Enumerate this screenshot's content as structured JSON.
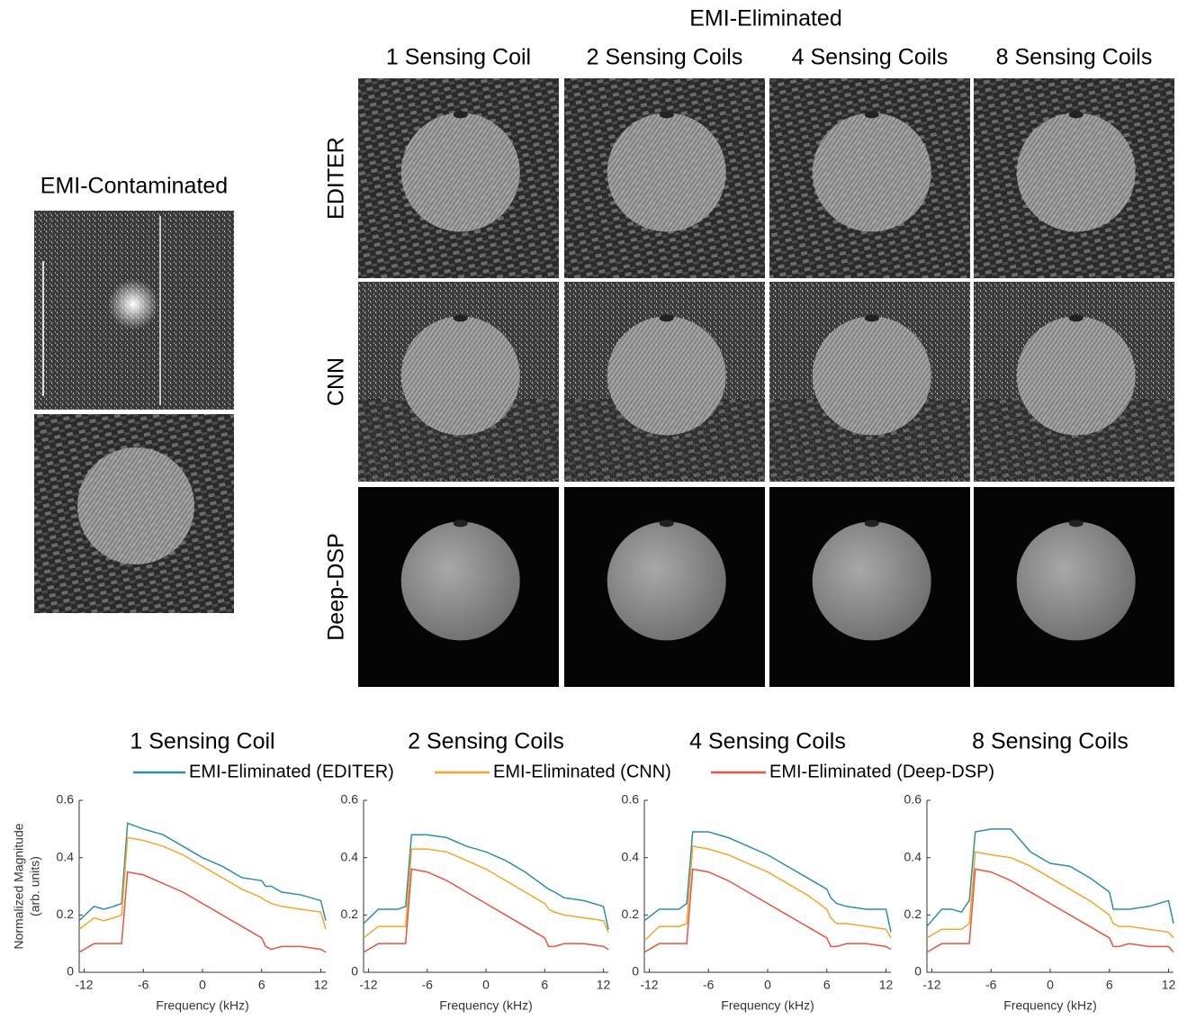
{
  "figure": {
    "contaminated_title": "EMI-Contaminated",
    "eliminated_title": "EMI-Eliminated",
    "columns": [
      "1 Sensing Coil",
      "2 Sensing Coils",
      "4 Sensing Coils",
      "8 Sensing Coils"
    ],
    "rows": [
      "EDITER",
      "CNN",
      "Deep-DSP"
    ]
  },
  "chart_data": [
    {
      "type": "line",
      "title": "1 Sensing Coil",
      "xlabel": "Frequency (kHz)",
      "ylabel": [
        "Normalized Magnitude",
        "(arb. units)"
      ],
      "xlim": [
        -12.5,
        12.5
      ],
      "xticks": [
        -12,
        -6,
        0,
        6,
        12
      ],
      "ylim": [
        0,
        0.6
      ],
      "yticks": [
        0,
        0.2,
        0.4,
        0.6
      ],
      "x": [
        -12.5,
        -11,
        -10,
        -9,
        -8.2,
        -7.6,
        -6,
        -4,
        -2,
        0,
        2,
        4,
        6,
        6.4,
        7,
        8,
        10,
        12,
        12.5
      ],
      "series": [
        {
          "name": "EMI-Eliminated (EDITER)",
          "color": "#2b8fa6",
          "values": [
            0.18,
            0.23,
            0.22,
            0.23,
            0.24,
            0.52,
            0.5,
            0.48,
            0.44,
            0.4,
            0.37,
            0.33,
            0.32,
            0.3,
            0.3,
            0.28,
            0.27,
            0.25,
            0.18
          ]
        },
        {
          "name": "EMI-Eliminated (CNN)",
          "color": "#f4a62a",
          "values": [
            0.15,
            0.19,
            0.18,
            0.19,
            0.2,
            0.47,
            0.46,
            0.44,
            0.41,
            0.37,
            0.33,
            0.29,
            0.26,
            0.25,
            0.24,
            0.23,
            0.22,
            0.21,
            0.15
          ]
        },
        {
          "name": "EMI-Eliminated (Deep-DSP)",
          "color": "#e8553f",
          "values": [
            0.07,
            0.1,
            0.1,
            0.1,
            0.1,
            0.35,
            0.34,
            0.31,
            0.28,
            0.24,
            0.2,
            0.16,
            0.12,
            0.09,
            0.08,
            0.09,
            0.09,
            0.08,
            0.07
          ]
        }
      ]
    },
    {
      "type": "line",
      "title": "2 Sensing Coils",
      "xlabel": "Frequency (kHz)",
      "xlim": [
        -12.5,
        12.5
      ],
      "xticks": [
        -12,
        -6,
        0,
        6,
        12
      ],
      "ylim": [
        0,
        0.6
      ],
      "yticks": [
        0,
        0.2,
        0.4,
        0.6
      ],
      "x": [
        -12.5,
        -11,
        -10,
        -9,
        -8.2,
        -7.6,
        -6,
        -4,
        -2,
        0,
        2,
        4,
        6,
        6.4,
        7,
        8,
        10,
        12,
        12.5
      ],
      "series": [
        {
          "color": "#2b8fa6",
          "values": [
            0.17,
            0.22,
            0.22,
            0.22,
            0.23,
            0.48,
            0.48,
            0.47,
            0.44,
            0.42,
            0.39,
            0.35,
            0.3,
            0.29,
            0.28,
            0.26,
            0.25,
            0.23,
            0.15
          ]
        },
        {
          "color": "#f4a62a",
          "values": [
            0.12,
            0.16,
            0.16,
            0.16,
            0.16,
            0.43,
            0.43,
            0.42,
            0.39,
            0.36,
            0.32,
            0.28,
            0.24,
            0.22,
            0.21,
            0.2,
            0.19,
            0.18,
            0.14
          ]
        },
        {
          "color": "#e8553f",
          "values": [
            0.07,
            0.1,
            0.1,
            0.1,
            0.1,
            0.36,
            0.35,
            0.32,
            0.28,
            0.24,
            0.2,
            0.16,
            0.12,
            0.09,
            0.09,
            0.1,
            0.1,
            0.09,
            0.08
          ]
        }
      ]
    },
    {
      "type": "line",
      "title": "4 Sensing Coils",
      "xlabel": "Frequency (kHz)",
      "xlim": [
        -12.5,
        12.5
      ],
      "xticks": [
        -12,
        -6,
        0,
        6,
        12
      ],
      "ylim": [
        0,
        0.6
      ],
      "yticks": [
        0,
        0.2,
        0.4,
        0.6
      ],
      "x": [
        -12.5,
        -11,
        -10,
        -9,
        -8.2,
        -7.6,
        -6,
        -4,
        -2,
        0,
        2,
        4,
        6,
        6.4,
        7,
        8,
        10,
        12,
        12.5
      ],
      "series": [
        {
          "color": "#2b8fa6",
          "values": [
            0.18,
            0.22,
            0.22,
            0.22,
            0.24,
            0.49,
            0.49,
            0.47,
            0.44,
            0.41,
            0.37,
            0.33,
            0.29,
            0.26,
            0.24,
            0.23,
            0.22,
            0.22,
            0.14
          ]
        },
        {
          "color": "#f4a62a",
          "values": [
            0.11,
            0.16,
            0.16,
            0.16,
            0.17,
            0.44,
            0.43,
            0.41,
            0.38,
            0.35,
            0.31,
            0.27,
            0.22,
            0.19,
            0.17,
            0.17,
            0.16,
            0.15,
            0.12
          ]
        },
        {
          "color": "#e8553f",
          "values": [
            0.07,
            0.1,
            0.1,
            0.1,
            0.1,
            0.36,
            0.35,
            0.32,
            0.28,
            0.24,
            0.2,
            0.16,
            0.12,
            0.09,
            0.09,
            0.1,
            0.1,
            0.09,
            0.08
          ]
        }
      ]
    },
    {
      "type": "line",
      "title": "8 Sensing Coils",
      "xlabel": "Frequency (kHz)",
      "xlim": [
        -12.5,
        12.5
      ],
      "xticks": [
        -12,
        -6,
        0,
        6,
        12
      ],
      "ylim": [
        0,
        0.6
      ],
      "yticks": [
        0,
        0.2,
        0.4,
        0.6
      ],
      "x": [
        -12.5,
        -11,
        -10,
        -9,
        -8.2,
        -7.6,
        -6,
        -4,
        -2,
        0,
        2,
        4,
        6,
        6.4,
        7,
        8,
        10,
        12,
        12.5
      ],
      "series": [
        {
          "color": "#2b8fa6",
          "values": [
            0.16,
            0.22,
            0.22,
            0.21,
            0.25,
            0.49,
            0.5,
            0.5,
            0.42,
            0.38,
            0.37,
            0.33,
            0.28,
            0.22,
            0.22,
            0.22,
            0.23,
            0.25,
            0.17
          ]
        },
        {
          "color": "#f4a62a",
          "values": [
            0.12,
            0.15,
            0.15,
            0.15,
            0.17,
            0.42,
            0.41,
            0.4,
            0.37,
            0.33,
            0.29,
            0.25,
            0.2,
            0.17,
            0.16,
            0.16,
            0.15,
            0.14,
            0.12
          ]
        },
        {
          "color": "#e8553f",
          "values": [
            0.07,
            0.1,
            0.1,
            0.1,
            0.1,
            0.36,
            0.35,
            0.32,
            0.28,
            0.24,
            0.2,
            0.16,
            0.12,
            0.09,
            0.09,
            0.1,
            0.09,
            0.09,
            0.07
          ]
        }
      ]
    }
  ]
}
